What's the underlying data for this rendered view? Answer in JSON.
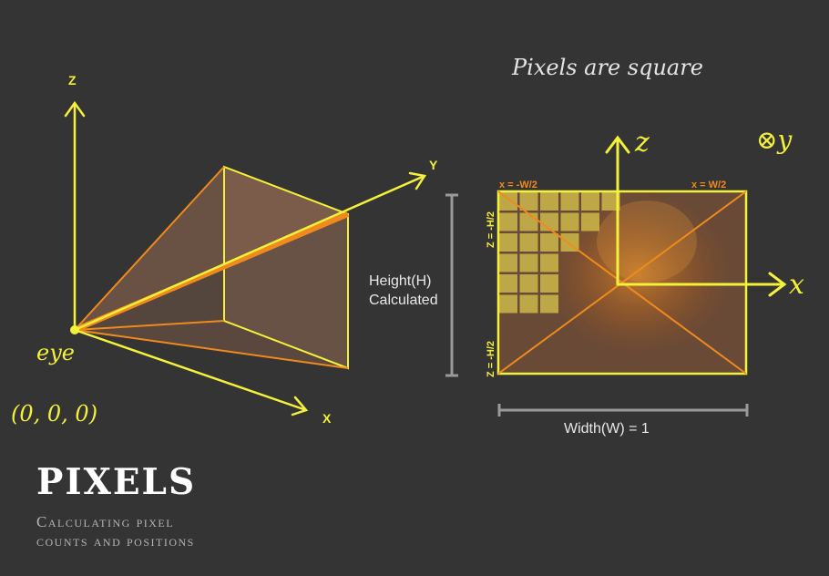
{
  "colors": {
    "background": "#343434",
    "yellow": "#f4f13a",
    "orange": "#f08a1c",
    "pixel_cell": "#d6c24a",
    "dim_line": "#9a9a9a",
    "text_light": "#ffffff",
    "text_muted": "#b4b4b4"
  },
  "left_diagram": {
    "axis_z": "Z",
    "axis_y": "Y",
    "axis_x": "X",
    "eye_label": "eye",
    "origin_label": "(0, 0, 0)"
  },
  "right_diagram": {
    "heading": "Pixels are square",
    "axis_z": "z",
    "axis_x": "x",
    "axis_y": "⊗y",
    "label_x_left": "x = -W/2",
    "label_x_right": "x = W/2",
    "label_z_top": "Z = -H/2",
    "label_z_bottom": "Z = -H/2",
    "height_line1": "Height(H)",
    "height_line2": "Calculated",
    "width_label": "Width(W) = 1",
    "pixel_row_counts": [
      6,
      5,
      4,
      3,
      3,
      3
    ]
  },
  "title": {
    "main": "PIXELS",
    "subtitle_line1": "Calculating pixel",
    "subtitle_line2": "counts and positions"
  }
}
